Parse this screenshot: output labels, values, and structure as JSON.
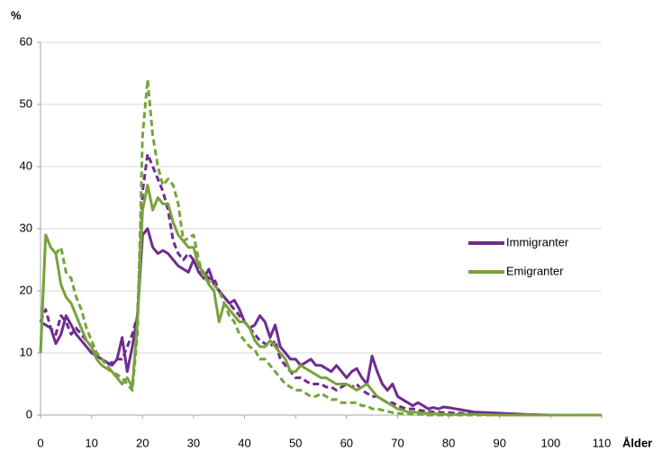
{
  "chart_data": {
    "type": "line",
    "xlabel": "Ålder",
    "ylabel": "%",
    "x": [
      0,
      1,
      2,
      3,
      4,
      5,
      6,
      7,
      8,
      9,
      10,
      11,
      12,
      13,
      14,
      15,
      16,
      17,
      18,
      19,
      20,
      21,
      22,
      23,
      24,
      25,
      26,
      27,
      28,
      29,
      30,
      31,
      32,
      33,
      34,
      35,
      36,
      37,
      38,
      39,
      40,
      41,
      42,
      43,
      44,
      45,
      46,
      47,
      48,
      49,
      50,
      51,
      52,
      53,
      54,
      55,
      56,
      57,
      58,
      59,
      60,
      61,
      62,
      63,
      64,
      65,
      66,
      67,
      68,
      69,
      70,
      71,
      72,
      73,
      74,
      75,
      76,
      77,
      78,
      79,
      80,
      85,
      90,
      95,
      100,
      105,
      110
    ],
    "series": [
      {
        "name": "Immigranter",
        "color": "#6f2c8f",
        "dashed": false,
        "values": [
          15,
          14.5,
          14,
          11.5,
          13,
          16,
          14.5,
          13,
          12,
          11,
          10,
          9.5,
          9,
          8.5,
          8,
          9,
          12.5,
          7,
          11,
          16,
          29,
          30,
          27,
          26,
          26.5,
          26,
          25,
          24,
          23.5,
          23,
          25,
          23,
          22,
          23.5,
          21,
          20,
          19,
          18,
          18.5,
          17,
          15,
          14,
          14.5,
          16,
          15,
          12.5,
          14.5,
          11,
          10,
          9,
          9,
          8,
          8.5,
          9,
          8,
          8,
          7.5,
          7,
          8,
          7,
          6,
          7,
          7.5,
          6,
          5,
          9.5,
          7,
          5,
          4,
          5,
          3,
          2.5,
          2,
          1.5,
          2,
          1.5,
          1,
          1.2,
          1,
          1.3,
          1.2,
          0.5,
          0.3,
          0.1,
          0,
          0,
          0
        ]
      },
      {
        "color": "#6f2c8f",
        "dashed": true,
        "values": [
          15,
          17,
          14,
          13,
          16,
          15,
          13,
          14,
          13,
          12,
          11,
          10,
          9,
          8,
          8.5,
          9,
          9,
          11,
          13,
          16,
          36,
          42,
          40,
          38,
          36,
          33,
          28,
          26,
          25,
          26,
          25,
          23,
          23,
          22,
          22,
          20,
          19,
          18,
          17,
          16,
          15,
          14,
          13,
          12,
          11.5,
          11,
          12,
          9,
          8,
          7,
          6,
          6,
          5.5,
          5,
          5,
          5,
          4.5,
          4.5,
          4,
          4.5,
          5,
          4.5,
          5,
          4,
          3.5,
          3,
          3,
          2.5,
          2,
          2,
          1.5,
          1.2,
          1,
          1,
          0.8,
          0.7,
          0.6,
          0.5,
          0.5,
          0.4,
          0.4,
          0.2,
          0.1,
          0,
          0,
          0,
          0
        ]
      },
      {
        "name": "Emigranter",
        "color": "#77a33c",
        "dashed": false,
        "values": [
          10,
          29,
          27,
          26,
          21,
          19,
          18,
          16,
          14,
          12,
          11,
          9,
          8,
          7.5,
          7,
          6,
          5,
          6,
          4.5,
          15,
          33,
          37,
          33,
          35,
          34,
          34,
          31,
          29,
          28,
          27,
          27,
          24,
          23,
          21,
          20,
          15,
          18,
          17,
          16,
          15,
          15,
          14,
          12,
          11,
          11,
          12,
          11,
          10,
          9,
          7,
          7,
          8,
          7.5,
          7,
          6.5,
          6,
          6,
          5.5,
          5,
          5,
          5,
          4.5,
          4,
          4.5,
          5,
          4,
          3,
          2.5,
          2,
          1.5,
          1,
          0.8,
          0.5,
          0.5,
          0.4,
          0.3,
          0.3,
          0.2,
          0.2,
          0.1,
          0.1,
          0.1,
          0,
          0,
          0,
          0,
          0
        ]
      },
      {
        "color": "#77a33c",
        "dashed": true,
        "values": [
          10,
          29,
          27,
          26,
          27,
          23,
          22,
          19,
          17,
          14,
          12,
          10,
          9,
          8,
          7,
          6.5,
          6,
          5,
          4,
          13,
          45,
          54,
          45,
          40,
          37,
          38,
          37,
          34,
          28,
          28.5,
          29,
          25,
          22,
          21.5,
          21,
          20,
          18,
          16,
          15,
          13,
          12,
          11,
          10.5,
          9,
          9,
          8,
          7,
          6,
          5,
          4.5,
          4,
          4,
          3.5,
          3,
          3,
          3.5,
          3,
          2.5,
          2.5,
          2,
          2,
          2,
          2,
          1.5,
          1.5,
          1,
          1,
          0.8,
          0.6,
          0.4,
          0.3,
          0.2,
          0.2,
          0.1,
          0.1,
          0.1,
          0,
          0,
          0,
          0,
          0,
          0,
          0,
          0,
          0,
          0,
          0
        ]
      }
    ],
    "xlim": [
      0,
      110
    ],
    "xticks": [
      0,
      10,
      20,
      30,
      40,
      50,
      60,
      70,
      80,
      90,
      100,
      110
    ],
    "ylim": [
      0,
      60
    ],
    "yticks": [
      0,
      10,
      20,
      30,
      40,
      50,
      60
    ],
    "grid": true,
    "legend": "right"
  }
}
